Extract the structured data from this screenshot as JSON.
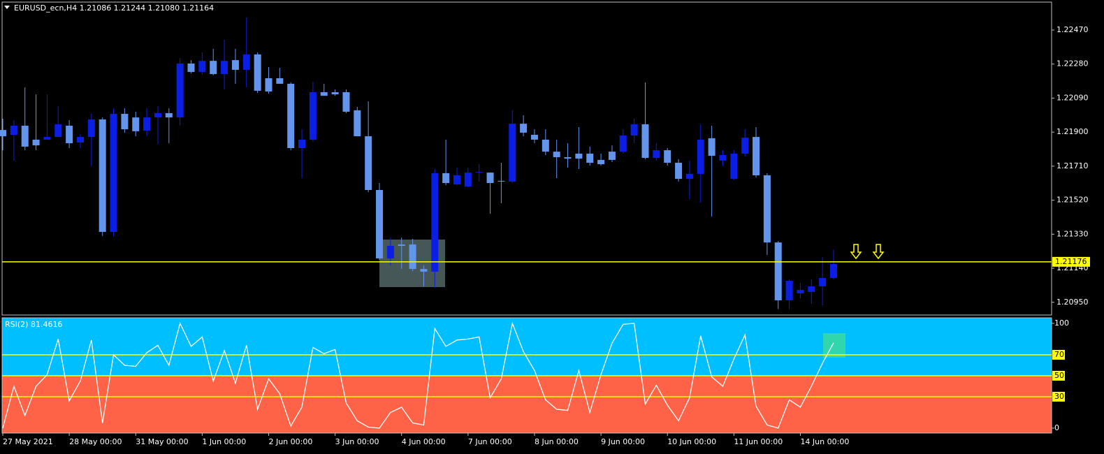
{
  "chart_data": [
    {
      "type": "candlestick",
      "title": "EURUSD_ecn,H4  1.21086 1.21244 1.21080 1.21164",
      "categories": [
        "27 May 2021",
        null,
        null,
        null,
        null,
        null,
        "28 May 00:00",
        null,
        null,
        null,
        null,
        null,
        "31 May 00:00",
        null,
        null,
        null,
        null,
        null,
        "1 Jun 00:00",
        null,
        null,
        null,
        null,
        null,
        "2 Jun 00:00",
        null,
        null,
        null,
        null,
        null,
        "3 Jun 00:00",
        null,
        null,
        null,
        null,
        null,
        "4 Jun 00:00",
        null,
        null,
        null,
        null,
        null,
        "7 Jun 00:00",
        null,
        null,
        null,
        null,
        null,
        "8 Jun 00:00",
        null,
        null,
        null,
        null,
        null,
        "9 Jun 00:00",
        null,
        null,
        null,
        null,
        null,
        "10 Jun 00:00",
        null,
        null,
        null,
        null,
        null,
        "11 Jun 00:00",
        null,
        null,
        null,
        null,
        null,
        "14 Jun 00:00",
        null,
        null,
        null
      ],
      "open": [
        1.21912,
        1.21885,
        1.21936,
        1.21858,
        1.21858,
        1.21873,
        1.21936,
        1.21842,
        1.21873,
        1.21971,
        1.21343,
        1.22002,
        1.21982,
        1.21908,
        1.21982,
        1.22006,
        1.21982,
        1.22283,
        1.22236,
        1.22298,
        1.22224,
        1.22302,
        1.22248,
        1.22334,
        1.22201,
        1.22201,
        1.2217,
        1.21811,
        1.21858,
        1.22123,
        1.22123,
        1.22123,
        1.22022,
        1.21877,
        1.21577,
        1.21195,
        1.21273,
        1.21273,
        1.21136,
        1.21121,
        1.21671,
        1.21608,
        1.21596,
        1.21678,
        1.21674,
        1.21628,
        1.21624,
        1.21947,
        1.21885,
        1.21858,
        1.21791,
        1.2176,
        1.2178,
        1.2178,
        1.21745,
        1.21791,
        1.21791,
        1.21881,
        1.21944,
        1.21756,
        1.21799,
        1.21729,
        1.21639,
        1.21667,
        1.21866,
        1.21741,
        1.21639,
        1.2178,
        1.21873,
        1.21659,
        1.21284,
        1.20961,
        1.21,
        1.21008,
        1.21039,
        1.21086
      ],
      "high": [
        1.21975,
        1.21967,
        1.2215,
        1.22111,
        1.22111,
        1.22045,
        1.21967,
        1.21889,
        1.22002,
        1.21982,
        1.22033,
        1.22033,
        1.22014,
        1.22033,
        1.22045,
        1.22033,
        1.22314,
        1.22302,
        1.22345,
        1.22365,
        1.22415,
        1.22365,
        1.2254,
        1.22345,
        1.22263,
        1.22259,
        1.22178,
        1.21916,
        1.22181,
        1.2217,
        1.22138,
        1.22138,
        1.22041,
        1.22072,
        1.21616,
        1.21312,
        1.21312,
        1.21304,
        1.21156,
        1.21694,
        1.21858,
        1.21702,
        1.21702,
        1.21721,
        1.21674,
        1.21729,
        1.22022,
        1.21994,
        1.21916,
        1.21916,
        1.21858,
        1.21838,
        1.21928,
        1.21819,
        1.2178,
        1.21826,
        1.21916,
        1.21975,
        1.22178,
        1.21838,
        1.21811,
        1.21749,
        1.21741,
        1.21944,
        1.21936,
        1.21799,
        1.21799,
        1.21916,
        1.21928,
        1.21671,
        1.21292,
        1.21078,
        1.21058,
        1.21078,
        1.21203,
        1.21244
      ],
      "low": [
        1.21799,
        1.21741,
        1.21799,
        1.21799,
        1.21858,
        1.21873,
        1.21811,
        1.21811,
        1.2171,
        1.2132,
        1.2132,
        1.21897,
        1.21877,
        1.21877,
        1.21834,
        1.21838,
        1.21936,
        1.22228,
        1.2222,
        1.22217,
        1.22138,
        1.2217,
        1.2215,
        1.22119,
        1.22115,
        1.2217,
        1.21799,
        1.21643,
        1.21846,
        1.22103,
        1.22103,
        1.22006,
        1.21877,
        1.21565,
        1.21187,
        1.21156,
        1.21136,
        1.21124,
        1.21039,
        1.21031,
        1.21604,
        1.21604,
        1.21593,
        1.21624,
        1.21444,
        1.21503,
        1.21616,
        1.21877,
        1.21838,
        1.21772,
        1.21643,
        1.21702,
        1.21694,
        1.21713,
        1.21713,
        1.21733,
        1.2178,
        1.21838,
        1.21749,
        1.21741,
        1.21713,
        1.21624,
        1.21526,
        1.21507,
        1.21429,
        1.2171,
        1.21632,
        1.21764,
        1.21647,
        1.21214,
        1.20912,
        1.20912,
        1.20972,
        1.20941,
        1.20934,
        1.2108
      ],
      "close": [
        1.21877,
        1.21936,
        1.21819,
        1.21826,
        1.21873,
        1.21944,
        1.21838,
        1.21873,
        1.21971,
        1.21343,
        1.22002,
        1.21916,
        1.21905,
        1.21982,
        1.22006,
        1.21982,
        1.22283,
        1.22236,
        1.22298,
        1.22224,
        1.22298,
        1.22248,
        1.22334,
        1.22131,
        1.22127,
        1.2217,
        1.21811,
        1.21858,
        1.22123,
        1.22103,
        1.22111,
        1.22014,
        1.21877,
        1.21577,
        1.21195,
        1.21265,
        1.21265,
        1.21136,
        1.21121,
        1.21671,
        1.21616,
        1.21659,
        1.21674,
        1.21678,
        1.21616,
        1.21624,
        1.21947,
        1.21897,
        1.21858,
        1.21791,
        1.2176,
        1.21752,
        1.21752,
        1.21729,
        1.21721,
        1.21745,
        1.21881,
        1.21944,
        1.21756,
        1.21799,
        1.21729,
        1.21639,
        1.21667,
        1.21858,
        1.21768,
        1.21772,
        1.2178,
        1.21869,
        1.21659,
        1.21284,
        1.20961,
        1.2107,
        1.21019,
        1.21039,
        1.21086,
        1.21164
      ],
      "up_color": "#0a1ee6",
      "down_color": "#6495ed",
      "ylim": [
        1.20879,
        1.22626
      ],
      "yticks": [
        {
          "value": 1.2247,
          "label": "1.22470"
        },
        {
          "value": 1.2228,
          "label": "1.22280"
        },
        {
          "value": 1.2209,
          "label": "1.22090"
        },
        {
          "value": 1.219,
          "label": "1.21900"
        },
        {
          "value": 1.2171,
          "label": "1.21710"
        },
        {
          "value": 1.2152,
          "label": "1.21520"
        },
        {
          "value": 1.2133,
          "label": "1.21330"
        },
        {
          "value": 1.2114,
          "label": "1.21140"
        },
        {
          "value": 1.2095,
          "label": "1.20950"
        }
      ],
      "level": 1.21176,
      "level_color": "#ffff00"
    },
    {
      "type": "line",
      "title": "RSI(2) 81.4616",
      "values": [
        0,
        40,
        12,
        40,
        51,
        85,
        26,
        45,
        84,
        5,
        70,
        60,
        59,
        72,
        79,
        60,
        100,
        78,
        87,
        45,
        74,
        43,
        79,
        18,
        47,
        33,
        2,
        20,
        77,
        71,
        75,
        24,
        7,
        1,
        0,
        15,
        20,
        5,
        3,
        95,
        78,
        84,
        85,
        87,
        29,
        47,
        100,
        73,
        55,
        27,
        18,
        17,
        55,
        15,
        51,
        81,
        99,
        100,
        23,
        41,
        22,
        7,
        29,
        88,
        49,
        40,
        66,
        89,
        21,
        3,
        0,
        27,
        20,
        40,
        62,
        81.4616
      ],
      "color": "#ffffff",
      "ylim": [
        -4.7,
        105.3
      ],
      "yticks": [
        0,
        30,
        50,
        70,
        100
      ],
      "levels": [
        70,
        50,
        30
      ],
      "level_color": "#ffff00",
      "split_level": 50,
      "fill_above": "#00bfff",
      "fill_below": "#ff6347"
    }
  ]
}
